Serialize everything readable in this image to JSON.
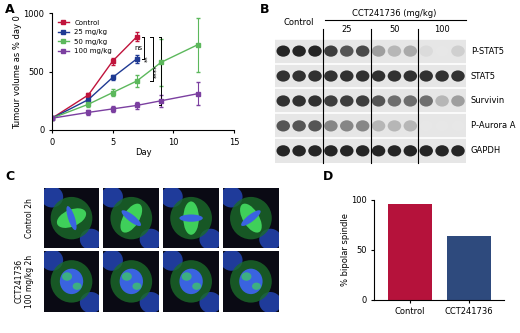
{
  "chart_data": [
    {
      "type": "line",
      "title": "A",
      "x_label": "Day",
      "y_label": "Tumour volume as % day 0",
      "xlim": [
        0,
        15
      ],
      "xticks": [
        0,
        5,
        10,
        15
      ],
      "ylim": [
        0,
        1000
      ],
      "yticks": [
        0,
        500,
        1000
      ],
      "legend": "upper left",
      "marker": "square",
      "series": [
        {
          "name": "Control",
          "color": "#c0143c",
          "x": [
            0,
            3,
            5,
            7
          ],
          "values": [
            100,
            300,
            590,
            800
          ],
          "errors": [
            0,
            15,
            30,
            40
          ]
        },
        {
          "name": "25 mg/kg",
          "color": "#1f3a93",
          "x": [
            0,
            3,
            5,
            7
          ],
          "values": [
            100,
            260,
            450,
            610
          ],
          "errors": [
            0,
            15,
            25,
            35
          ]
        },
        {
          "name": "50 mg/kg",
          "color": "#5cb85c",
          "x": [
            0,
            3,
            5,
            7,
            9,
            12
          ],
          "values": [
            100,
            220,
            320,
            420,
            580,
            730
          ],
          "errors": [
            0,
            20,
            30,
            50,
            200,
            230
          ]
        },
        {
          "name": "100 mg/kg",
          "color": "#7b3fa0",
          "x": [
            0,
            3,
            5,
            7,
            9,
            12
          ],
          "values": [
            100,
            150,
            180,
            210,
            250,
            310
          ],
          "errors": [
            0,
            20,
            25,
            30,
            50,
            100
          ]
        }
      ],
      "annotations": [
        "ns",
        "**",
        "****"
      ]
    },
    {
      "type": "bar",
      "title": "D",
      "y_label": "% bipolar spindle",
      "categories": [
        "Control",
        "CCT241736"
      ],
      "values": [
        96,
        64
      ],
      "colors": [
        "#b5123b",
        "#2e4a7d"
      ],
      "ylim": [
        0,
        100
      ],
      "yticks": [
        0,
        50,
        100
      ]
    }
  ],
  "blot": {
    "title": "B",
    "treatment_header": "CCT241736 (mg/kg)",
    "groups": [
      {
        "label": "Control",
        "lanes": 3
      },
      {
        "label": "25",
        "lanes": 3
      },
      {
        "label": "50",
        "lanes": 3
      },
      {
        "label": "100",
        "lanes": 3
      }
    ],
    "rows": [
      {
        "label": "P-STAT5",
        "intensity": [
          0.9,
          0.9,
          0.9,
          0.8,
          0.7,
          0.75,
          0.4,
          0.3,
          0.35,
          0.15,
          0.1,
          0.2
        ]
      },
      {
        "label": "STAT5",
        "intensity": [
          0.85,
          0.85,
          0.85,
          0.85,
          0.85,
          0.85,
          0.85,
          0.85,
          0.85,
          0.85,
          0.85,
          0.85
        ]
      },
      {
        "label": "Survivin",
        "intensity": [
          0.85,
          0.85,
          0.85,
          0.8,
          0.8,
          0.8,
          0.7,
          0.6,
          0.6,
          0.6,
          0.3,
          0.4
        ]
      },
      {
        "label": "P-Aurora A",
        "intensity": [
          0.7,
          0.7,
          0.7,
          0.5,
          0.5,
          0.5,
          0.3,
          0.3,
          0.3,
          0.1,
          0.1,
          0.1
        ]
      },
      {
        "label": "GAPDH",
        "intensity": [
          0.9,
          0.9,
          0.9,
          0.9,
          0.9,
          0.9,
          0.9,
          0.9,
          0.9,
          0.9,
          0.9,
          0.9
        ]
      }
    ]
  },
  "microscopy": {
    "title": "C",
    "rows": [
      {
        "label": [
          "Control 2h"
        ]
      },
      {
        "label": [
          "CCT241736",
          "100 mg/kg 2h"
        ]
      }
    ]
  }
}
